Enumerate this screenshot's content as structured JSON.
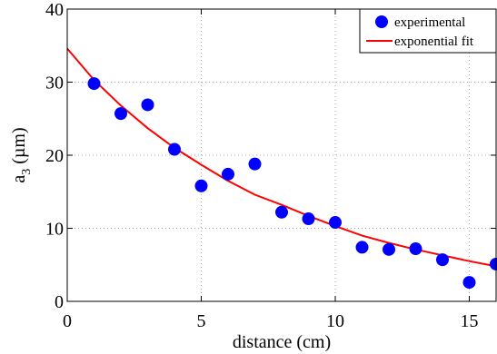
{
  "chart_data": {
    "type": "scatter",
    "xlabel": "distance (cm)",
    "ylabel": {
      "base": "a",
      "sub": "3",
      "unit": " (µm)"
    },
    "xlim": [
      0,
      16
    ],
    "ylim": [
      0,
      40
    ],
    "xticks": [
      0,
      5,
      10,
      15
    ],
    "yticks": [
      0,
      10,
      20,
      30,
      40
    ],
    "grid": true,
    "legend_position": "top-right",
    "series": [
      {
        "name": "experimental",
        "kind": "scatter",
        "color": "#0000ff",
        "x": [
          1,
          2,
          3,
          4,
          5,
          6,
          7,
          8,
          9,
          10,
          11,
          12,
          13,
          14,
          15,
          16
        ],
        "y": [
          29.8,
          25.7,
          26.9,
          20.8,
          15.8,
          17.4,
          18.8,
          12.2,
          11.3,
          10.8,
          7.4,
          7.1,
          7.2,
          5.7,
          2.6,
          5.1
        ]
      },
      {
        "name": "exponential fit",
        "kind": "line",
        "color": "#ff0000",
        "x": [
          0,
          1,
          2,
          3,
          4,
          5,
          6,
          7,
          8,
          9,
          10,
          11,
          12,
          13,
          14,
          15,
          16
        ],
        "y": [
          34.6,
          30.3,
          26.8,
          23.7,
          21.0,
          18.7,
          16.5,
          14.6,
          13.2,
          11.7,
          10.3,
          9.0,
          8.0,
          7.1,
          6.3,
          5.5,
          4.8
        ]
      }
    ]
  }
}
